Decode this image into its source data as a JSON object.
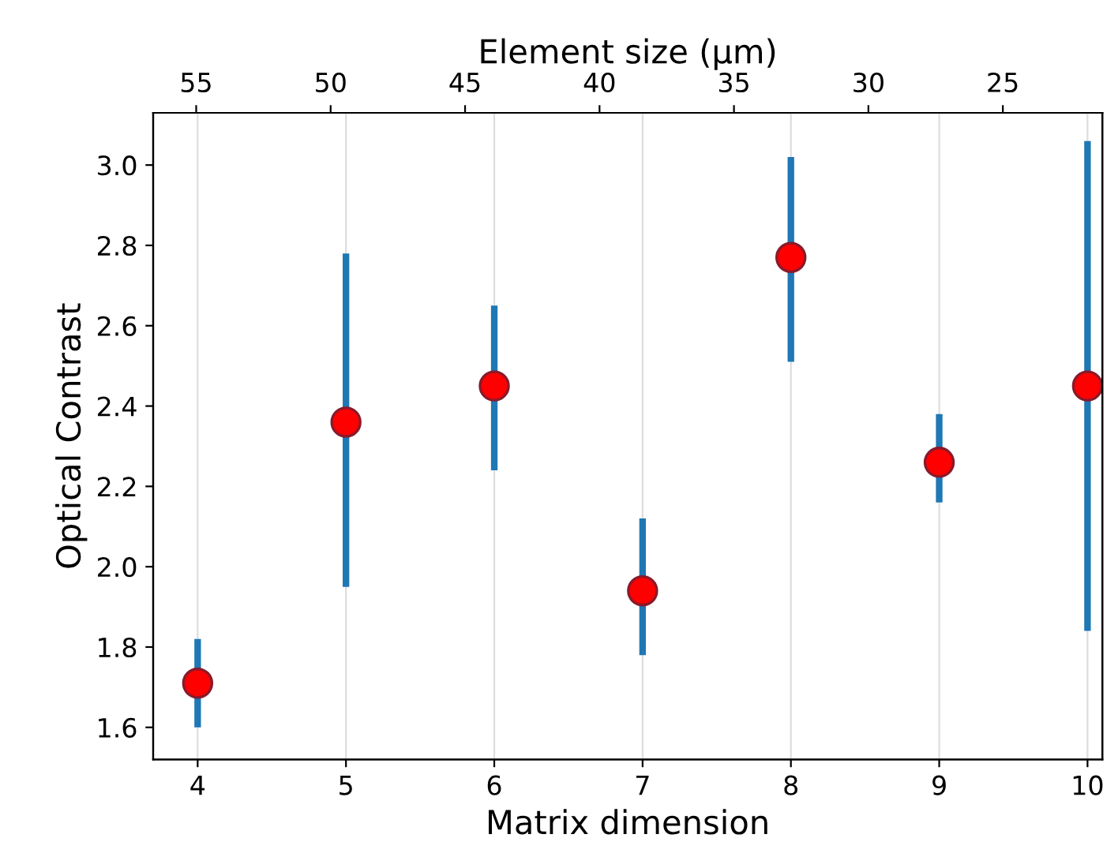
{
  "chart_data": {
    "type": "scatter",
    "xlabel": "Matrix dimension",
    "ylabel": "Optical Contrast",
    "x2label": "Element size (µm)",
    "x": [
      4,
      5,
      6,
      7,
      8,
      9,
      10
    ],
    "series": [
      {
        "color": "#ff0000",
        "values": [
          1.71,
          2.36,
          2.45,
          1.94,
          2.77,
          2.26,
          2.45
        ],
        "errors": [
          [
            1.6,
            1.82
          ],
          [
            1.95,
            2.78
          ],
          [
            2.24,
            2.65
          ],
          [
            1.78,
            2.12
          ],
          [
            2.51,
            3.02
          ],
          [
            2.16,
            2.38
          ],
          [
            1.84,
            3.06
          ]
        ]
      }
    ],
    "xlim": [
      3.7,
      10.1
    ],
    "xticks": [
      4,
      5,
      6,
      7,
      8,
      9,
      10
    ],
    "ylim": [
      1.52,
      3.13
    ],
    "yticks": [
      1.6,
      1.8,
      {
        "value": 2.0,
        "label": "2.0"
      },
      2.2,
      2.4,
      2.6,
      2.8,
      {
        "value": 3.0,
        "label": "3.0"
      }
    ],
    "x2lim": [
      56.6,
      21.3
    ],
    "x2ticks": [
      55,
      50,
      45,
      40,
      35,
      30,
      25
    ],
    "grid": "x",
    "marker": "circle"
  }
}
